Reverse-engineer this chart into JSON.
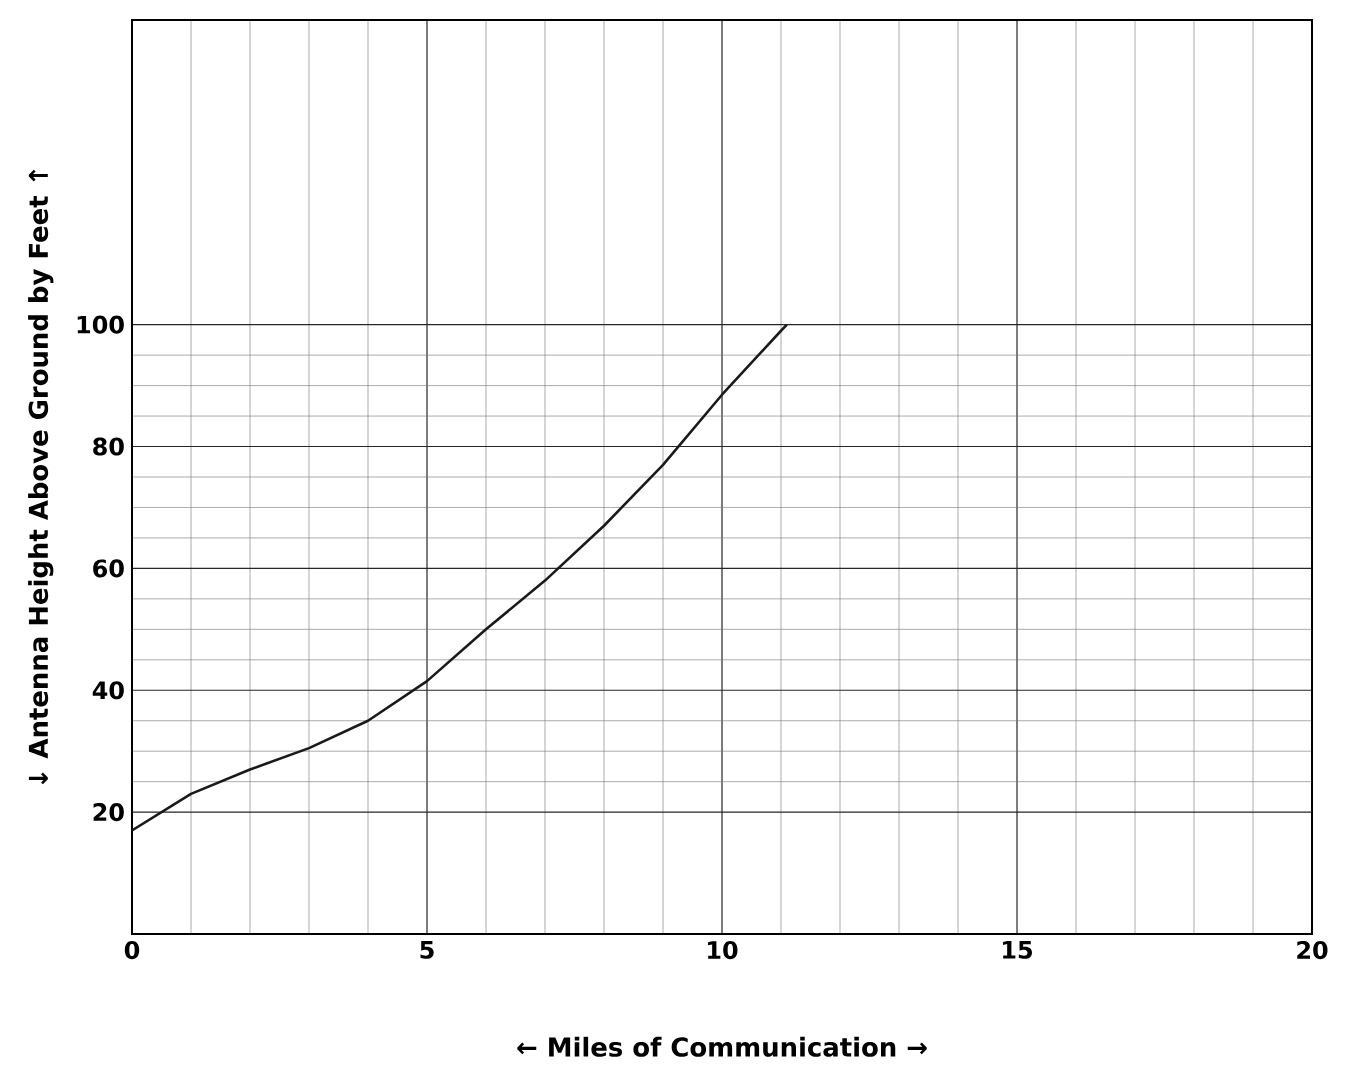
{
  "chart_data": {
    "type": "line",
    "xlabel": "←   Miles of Communication   →",
    "ylabel": "↓   Antenna Height Above Ground by Feet   ↑",
    "x": [
      0,
      1,
      2,
      3,
      4,
      5,
      6,
      7,
      8,
      9,
      10,
      11,
      11.1
    ],
    "values": [
      17,
      23,
      27,
      30.5,
      35,
      41.5,
      50,
      58,
      67,
      77,
      88.5,
      99,
      100
    ],
    "color": "#1a1a1a",
    "marker": "none",
    "line_style": "solid",
    "grid": true,
    "xlim": [
      0,
      20
    ],
    "ylim": [
      0,
      150
    ],
    "xticks": [
      0,
      5,
      10,
      15,
      20
    ],
    "yticks": [
      20,
      40,
      60,
      80,
      100
    ]
  }
}
